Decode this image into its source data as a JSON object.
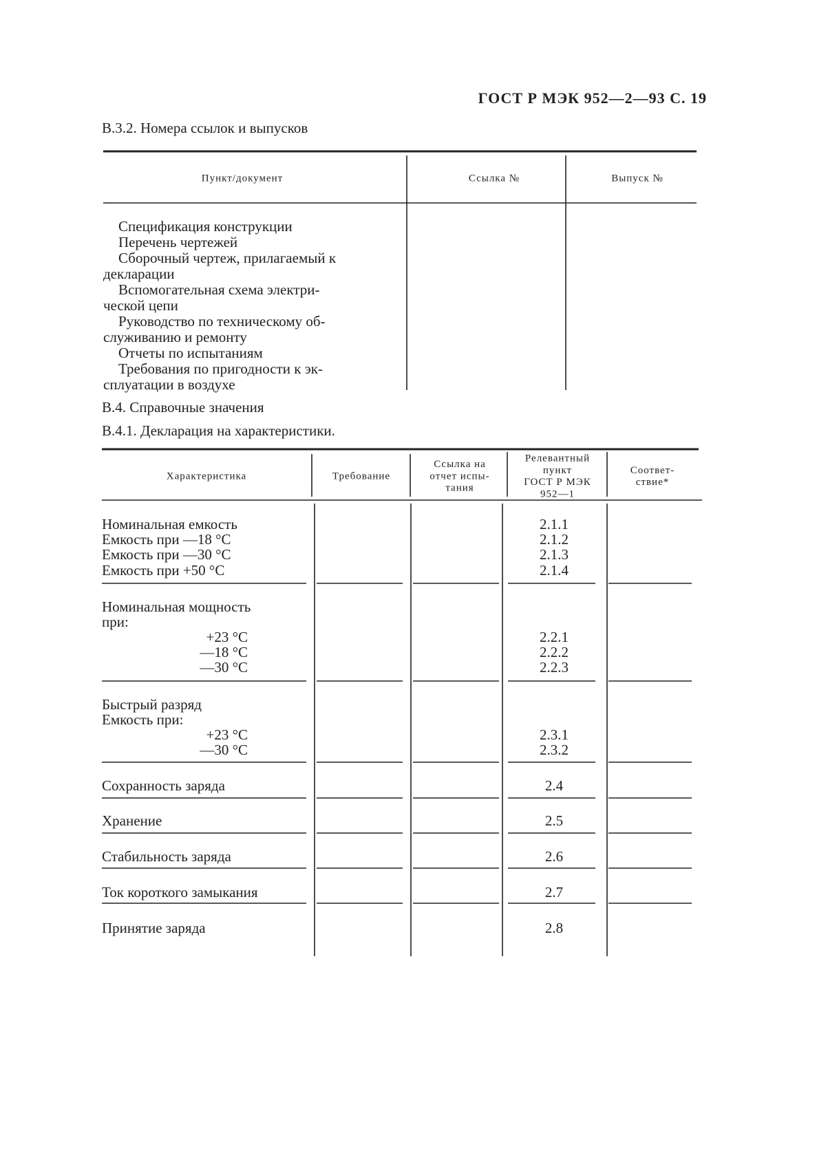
{
  "header": {
    "title": "ГОСТ Р МЭК 952—2—93 С. 19"
  },
  "section1": {
    "title": "В.3.2. Номера ссылок и выпусков"
  },
  "table1": {
    "headers": [
      "Пункт/документ",
      "Ссылка №",
      "Выпуск №"
    ],
    "rows": [
      "Спецификация конструкции",
      "Перечень чертежей",
      "Сборочный чертеж, прилагаемый к",
      "декларации",
      "Вспомогательная схема электри-",
      "ческой цепи",
      "Руководство по техническому об-",
      "служиванию и ремонту",
      "Отчеты по испытаниям",
      "Требования по пригодности к эк-",
      "сплуатации в воздухе"
    ]
  },
  "section2": {
    "title": "В.4. Справочные значения"
  },
  "section3": {
    "title": "В.4.1. Декларация на характеристики."
  },
  "table2": {
    "headers": [
      [
        "Характеристика"
      ],
      [
        "Требование"
      ],
      [
        "Ссылка на",
        "отчет испы-",
        "тания"
      ],
      [
        "Релевантный",
        "пункт",
        "ГОСТ Р МЭК",
        "952—1"
      ],
      [
        "Соответ-",
        "ствие*"
      ]
    ],
    "rows": [
      {
        "label": "Номинальная емкость",
        "ref": "2.1.1"
      },
      {
        "label": "Емкость при —18 °С",
        "ref": "2.1.2"
      },
      {
        "label": "Емкость при —30 °С",
        "ref": "2.1.3"
      },
      {
        "label": "Емкость при +50 °С",
        "ref": "2.1.4"
      },
      {
        "label": "Номинальная мощность"
      },
      {
        "label": "при:"
      },
      {
        "label": "+23 °С",
        "ref": "2.2.1"
      },
      {
        "label": "—18 °С",
        "ref": "2.2.2"
      },
      {
        "label": "—30 °С",
        "ref": "2.2.3"
      },
      {
        "label": "Быстрый разряд"
      },
      {
        "label": "Емкость при:"
      },
      {
        "label": "+23 °С",
        "ref": "2.3.1"
      },
      {
        "label": "—30 °С",
        "ref": "2.3.2"
      },
      {
        "label": "Сохранность заряда",
        "ref": "2.4"
      },
      {
        "label": "Хранение",
        "ref": "2.5"
      },
      {
        "label": "Стабильность заряда",
        "ref": "2.6"
      },
      {
        "label": "Ток короткого замыкания",
        "ref": "2.7"
      },
      {
        "label": "Принятие заряда",
        "ref": "2.8"
      }
    ]
  }
}
